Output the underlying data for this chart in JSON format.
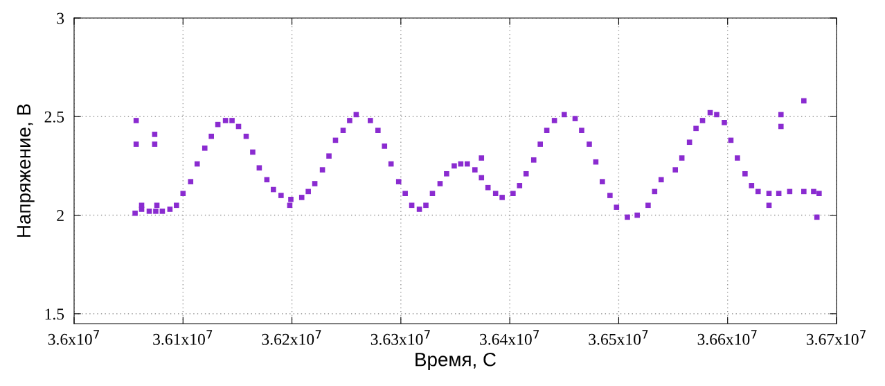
{
  "chart_data": {
    "type": "scatter",
    "xlabel": "Время, С",
    "ylabel": "Напряжение, В",
    "xlim": [
      36000000,
      36700000
    ],
    "xticks": [
      {
        "value": 36000000,
        "label": "3.6x10$^{7}$"
      },
      {
        "value": 36100000,
        "label": "3.61x10$^{7}$"
      },
      {
        "value": 36200000,
        "label": "3.62x10$^{7}$"
      },
      {
        "value": 36300000,
        "label": "3.63x10$^{7}$"
      },
      {
        "value": 36400000,
        "label": "3.64x10$^{7}$"
      },
      {
        "value": 36500000,
        "label": "3.65x10$^{7}$"
      },
      {
        "value": 36600000,
        "label": "3.66x10$^{7}$"
      },
      {
        "value": 36700000,
        "label": "3.67x10$^{7}$"
      }
    ],
    "ylim": [
      1.45,
      3
    ],
    "yticks": [
      1.5,
      2,
      2.5,
      3
    ],
    "grid": true,
    "marker": "square",
    "series": [
      {
        "color": "#8a2bd0",
        "x": [
          36056000,
          36062000,
          36069000,
          36075000,
          36081000,
          36062000,
          36076000,
          36088000,
          36094000,
          36100000,
          36107000,
          36113000,
          36120000,
          36126000,
          36132000,
          36139000,
          36145000,
          36151000,
          36158000,
          36164000,
          36170000,
          36177000,
          36183000,
          36190000,
          36199000,
          36209000,
          36215000,
          36221000,
          36228000,
          36234000,
          36240000,
          36247000,
          36253000,
          36259000,
          36272000,
          36279000,
          36285000,
          36291000,
          36298000,
          36304000,
          36310000,
          36317000,
          36323000,
          36329000,
          36336000,
          36342000,
          36349000,
          36355000,
          36361000,
          36368000,
          36374000,
          36380000,
          36387000,
          36393000,
          36403000,
          36409000,
          36415000,
          36422000,
          36428000,
          36434000,
          36441000,
          36450000,
          36460000,
          36466000,
          36473000,
          36479000,
          36485000,
          36492000,
          36498000,
          36508000,
          36517000,
          36527000,
          36533000,
          36539000,
          36552000,
          36558000,
          36565000,
          36571000,
          36577000,
          36584000,
          36590000,
          36597000,
          36603000,
          36609000,
          36616000,
          36622000,
          36628000,
          36638000,
          36647000,
          36657000,
          36670000,
          36679000,
          36684000,
          36057000,
          36057000,
          36074000,
          36074000,
          36198000,
          36374000,
          36649000,
          36649000,
          36670000,
          36638000,
          36682000
        ],
        "values": [
          2.01,
          2.03,
          2.02,
          2.02,
          2.02,
          2.05,
          2.05,
          2.03,
          2.05,
          2.11,
          2.17,
          2.26,
          2.34,
          2.4,
          2.46,
          2.48,
          2.48,
          2.45,
          2.4,
          2.32,
          2.24,
          2.18,
          2.13,
          2.1,
          2.08,
          2.09,
          2.12,
          2.16,
          2.23,
          2.3,
          2.38,
          2.43,
          2.48,
          2.51,
          2.48,
          2.43,
          2.35,
          2.26,
          2.17,
          2.11,
          2.05,
          2.03,
          2.05,
          2.11,
          2.16,
          2.21,
          2.25,
          2.26,
          2.26,
          2.23,
          2.19,
          2.14,
          2.11,
          2.09,
          2.11,
          2.15,
          2.21,
          2.28,
          2.36,
          2.43,
          2.48,
          2.51,
          2.49,
          2.43,
          2.36,
          2.27,
          2.17,
          2.1,
          2.04,
          1.99,
          2.0,
          2.05,
          2.12,
          2.18,
          2.23,
          2.29,
          2.37,
          2.44,
          2.48,
          2.52,
          2.51,
          2.47,
          2.38,
          2.29,
          2.21,
          2.15,
          2.12,
          2.11,
          2.11,
          2.12,
          2.12,
          2.12,
          2.11,
          2.48,
          2.36,
          2.41,
          2.36,
          2.05,
          2.29,
          2.51,
          2.45,
          2.58,
          2.05,
          1.99
        ]
      }
    ]
  }
}
